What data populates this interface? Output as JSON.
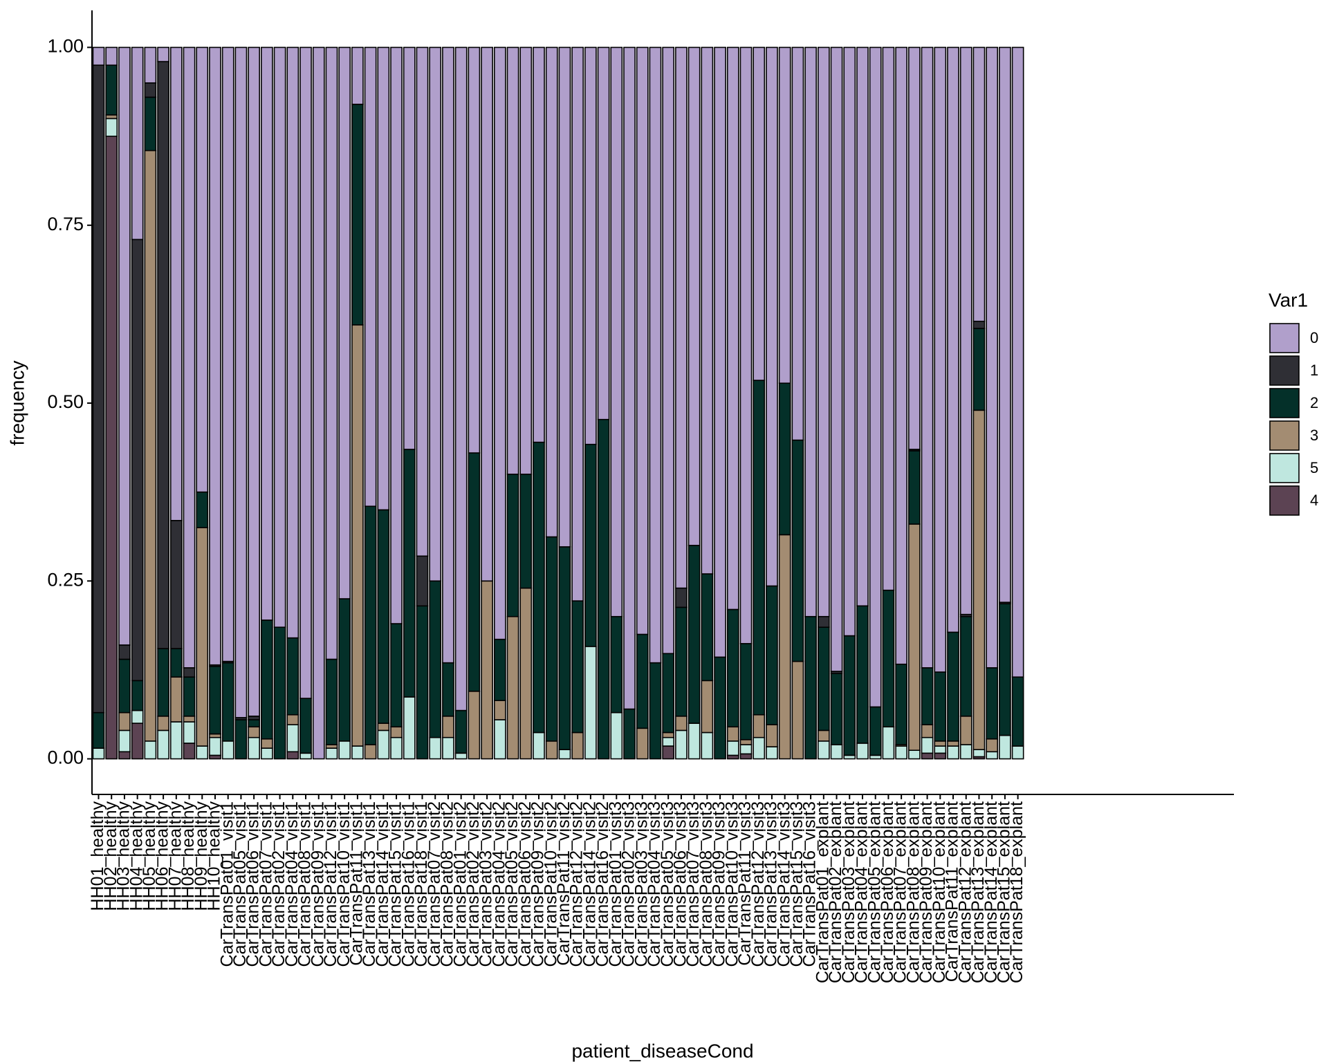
{
  "chart_data": {
    "type": "bar",
    "stacked": true,
    "x_label": "patient_diseaseCond",
    "y_label": "frequency",
    "legend_title": "Var1",
    "legend": "right",
    "grid": false,
    "ylim": [
      -0.05,
      1.052
    ],
    "yticks": [
      {
        "value": 0,
        "label": "0.00"
      },
      {
        "value": 0.25,
        "label": "0.25"
      },
      {
        "value": 0.5,
        "label": "0.50"
      },
      {
        "value": 0.75,
        "label": "0.75"
      },
      {
        "value": 1,
        "label": "1.00"
      }
    ],
    "categories": [
      "HH01_healthy",
      "HH02_healthy",
      "HH03_healthy",
      "HH04_healthy",
      "HH05_healthy",
      "HH06_healthy",
      "HH07_healthy",
      "HH08_healthy",
      "HH09_healthy",
      "HH10_healthy",
      "CarTransPat01_visit1",
      "CarTransPat05_visit1",
      "CarTransPat06_visit1",
      "CarTransPat07_visit1",
      "CarTransPat02_visit1",
      "CarTransPat04_visit1",
      "CarTransPat08_visit1",
      "CarTransPat09_visit1",
      "CarTransPat12_visit1",
      "CarTransPat10_visit1",
      "CarTransPat11_visit1",
      "CarTransPat13_visit1",
      "CarTransPat14_visit1",
      "CarTransPat15_visit1",
      "CarTransPat16_visit1",
      "CarTransPat18_visit1",
      "CarTransPat07_visit2",
      "CarTransPat08_visit2",
      "CarTransPat01_visit2",
      "CarTransPat02_visit2",
      "CarTransPat03_visit2",
      "CarTransPat04_visit2",
      "CarTransPat05_visit2",
      "CarTransPat06_visit2",
      "CarTransPat09_visit2",
      "CarTransPat10_visit2",
      "CarTransPat11_visit2",
      "CarTransPat12_visit2",
      "CarTransPat14_visit2",
      "CarTransPat16_visit2",
      "CarTransPat01_visit3",
      "CarTransPat02_visit3",
      "CarTransPat03_visit3",
      "CarTransPat04_visit3",
      "CarTransPat05_visit3",
      "CarTransPat06_visit3",
      "CarTransPat07_visit3",
      "CarTransPat08_visit3",
      "CarTransPat09_visit3",
      "CarTransPat10_visit3",
      "CarTransPat11_visit3",
      "CarTransPat12_visit3",
      "CarTransPat13_visit3",
      "CarTransPat14_visit3",
      "CarTransPat15_visit3",
      "CarTransPat16_visit3",
      "CarTransPat01_explant",
      "CarTransPat02_explant",
      "CarTransPat03_explant",
      "CarTransPat04_explant",
      "CarTransPat05_explant",
      "CarTransPat06_explant",
      "CarTransPat07_explant",
      "CarTransPat08_explant",
      "CarTransPat09_explant",
      "CarTransPat10_explant",
      "CarTransPat11_explant",
      "CarTransPat12_explant",
      "CarTransPat13_explant",
      "CarTransPat14_explant",
      "CarTransPat15_explant",
      "CarTransPat18_explant"
    ],
    "series": [
      {
        "name": "0",
        "color": "#b09fcb",
        "values": [
          0.025,
          0.025,
          0.84,
          0.27,
          0.05,
          0.02,
          0.665,
          0.872,
          0.625,
          0.868,
          0.863,
          0.942,
          0.94,
          0.805,
          0.815,
          0.83,
          0.915,
          1,
          0.86,
          0.775,
          0.08,
          0.645,
          0.65,
          0.81,
          0.565,
          0.715,
          0.75,
          0.865,
          0.932,
          0.57,
          0.75,
          0.832,
          0.6,
          0.6,
          0.555,
          0.688,
          0.702,
          0.778,
          0.558,
          0.523,
          0.8,
          0.93,
          0.825,
          0.865,
          0.852,
          0.76,
          0.7,
          0.74,
          0.857,
          0.79,
          0.838,
          0.468,
          0.757,
          0.472,
          0.552,
          0.8,
          0.8,
          0.877,
          0.827,
          0.785,
          0.927,
          0.763,
          0.867,
          0.565,
          0.872,
          0.878,
          0.822,
          0.797,
          0.385,
          0.872,
          0.78,
          0.885
        ]
      },
      {
        "name": "1",
        "color": "#2f2f35",
        "values": [
          0.91,
          0,
          0.02,
          0.62,
          0.02,
          0.825,
          0.18,
          0.013,
          0,
          0.002,
          0.002,
          0.003,
          0.005,
          0,
          0,
          0,
          0,
          0,
          0,
          0,
          0,
          0,
          0,
          0,
          0,
          0.07,
          0,
          0,
          0,
          0,
          0,
          0,
          0,
          0,
          0,
          0,
          0,
          0,
          0,
          0,
          0,
          0,
          0,
          0,
          0,
          0.027,
          0,
          0,
          0,
          0,
          0,
          0,
          0,
          0,
          0,
          0,
          0.015,
          0.003,
          0,
          0,
          0,
          0,
          0,
          0.002,
          0,
          0,
          0,
          0.003,
          0.01,
          0,
          0.002,
          0
        ]
      },
      {
        "name": "2",
        "color": "#043029",
        "values": [
          0.05,
          0.07,
          0.075,
          0.042,
          0.075,
          0.095,
          0.04,
          0.055,
          0.05,
          0.095,
          0.11,
          0.055,
          0.01,
          0.167,
          0.185,
          0.108,
          0.077,
          0,
          0.12,
          0.2,
          0.31,
          0.335,
          0.3,
          0.145,
          0.348,
          0.215,
          0.22,
          0.075,
          0.06,
          0.335,
          0,
          0.086,
          0.2,
          0.16,
          0.408,
          0.287,
          0.285,
          0.185,
          0.284,
          0.477,
          0.135,
          0.07,
          0.132,
          0.135,
          0.111,
          0.153,
          0.25,
          0.15,
          0.143,
          0.165,
          0.135,
          0.47,
          0.195,
          0.213,
          0.311,
          0.2,
          0.145,
          0.1,
          0.168,
          0.193,
          0.068,
          0.192,
          0.113,
          0.103,
          0.08,
          0.097,
          0.153,
          0.14,
          0.115,
          0.1,
          0.185,
          0.097
        ]
      },
      {
        "name": "3",
        "color": "#a38c72",
        "values": [
          0,
          0.005,
          0.025,
          0,
          0.83,
          0.02,
          0.063,
          0.008,
          0.307,
          0.005,
          0,
          0,
          0.015,
          0.013,
          0,
          0.014,
          0,
          0,
          0.005,
          0,
          0.592,
          0.02,
          0.01,
          0.015,
          0,
          0,
          0,
          0.03,
          0,
          0.095,
          0.25,
          0.027,
          0.2,
          0.24,
          0,
          0.025,
          0,
          0.037,
          0,
          0,
          0,
          0,
          0.043,
          0,
          0.007,
          0.02,
          0,
          0.073,
          0,
          0.02,
          0.007,
          0.032,
          0.031,
          0.315,
          0.137,
          0,
          0.015,
          0,
          0,
          0,
          0,
          0,
          0.002,
          0.318,
          0.018,
          0.007,
          0.007,
          0.04,
          0.477,
          0.018,
          0,
          0
        ]
      },
      {
        "name": "5",
        "color": "#bfe7df",
        "values": [
          0.015,
          0.025,
          0.03,
          0.018,
          0.025,
          0.04,
          0.052,
          0.03,
          0.018,
          0.025,
          0.025,
          0,
          0.03,
          0.015,
          0,
          0.038,
          0.008,
          0,
          0.015,
          0.025,
          0.018,
          0,
          0.04,
          0.03,
          0.087,
          0,
          0.03,
          0.03,
          0.008,
          0,
          0,
          0.055,
          0,
          0,
          0.037,
          0,
          0.013,
          0,
          0.158,
          0,
          0.065,
          0,
          0,
          0,
          0.012,
          0.04,
          0.05,
          0.037,
          0,
          0.02,
          0.013,
          0.03,
          0.017,
          0,
          0,
          0,
          0.025,
          0.02,
          0.005,
          0.022,
          0.005,
          0.045,
          0.018,
          0.012,
          0.022,
          0.01,
          0.018,
          0.02,
          0.01,
          0.01,
          0.033,
          0.018
        ]
      },
      {
        "name": "4",
        "color": "#5c4353",
        "values": [
          0,
          0.875,
          0.01,
          0.05,
          0,
          0,
          0,
          0.022,
          0,
          0.005,
          0,
          0,
          0,
          0,
          0,
          0.01,
          0,
          0,
          0,
          0,
          0,
          0,
          0,
          0,
          0,
          0,
          0,
          0,
          0,
          0,
          0,
          0,
          0,
          0,
          0,
          0,
          0,
          0,
          0,
          0,
          0,
          0,
          0,
          0,
          0.018,
          0,
          0,
          0,
          0,
          0.005,
          0.007,
          0,
          0,
          0,
          0,
          0,
          0,
          0,
          0,
          0,
          0,
          0,
          0,
          0,
          0.008,
          0.008,
          0,
          0,
          0.003,
          0,
          0,
          0
        ]
      }
    ]
  }
}
